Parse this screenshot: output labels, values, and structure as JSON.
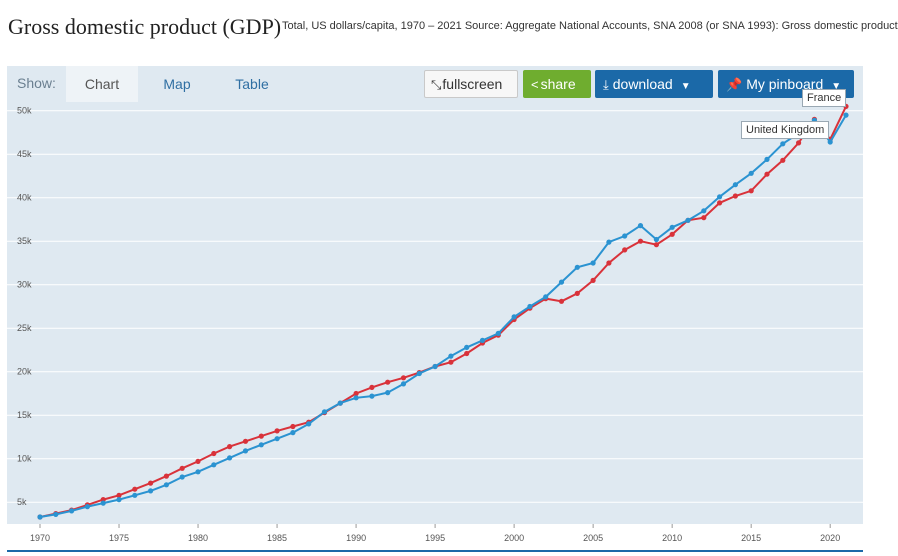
{
  "header": {
    "title": "Gross domestic product (GDP)",
    "subtitle": "Total, US dollars/capita, 1970 – 2021 Source: Aggregate National Accounts, SNA 2008 (or SNA 1993): Gross domestic product"
  },
  "toolbar": {
    "show_label": "Show:",
    "tabs": [
      {
        "label": "Chart",
        "active": true
      },
      {
        "label": "Map",
        "active": false
      },
      {
        "label": "Table",
        "active": false
      }
    ],
    "fullscreen_label": "fullscreen",
    "share_label": "share",
    "download_label": "download",
    "pinboard_label": "My pinboard"
  },
  "tooltips": {
    "france": "France",
    "uk": "United Kingdom"
  },
  "colors": {
    "france": "#d9323a",
    "uk": "#2b93d1",
    "plot_bg": "#dfe9f1",
    "grid": "#ffffff",
    "accent": "#1b69a8",
    "share": "#6fad2f"
  },
  "chart_data": {
    "type": "line",
    "title": "Gross domestic product (GDP)",
    "xlabel": "",
    "ylabel": "",
    "x": [
      1970,
      1971,
      1972,
      1973,
      1974,
      1975,
      1976,
      1977,
      1978,
      1979,
      1980,
      1981,
      1982,
      1983,
      1984,
      1985,
      1986,
      1987,
      1988,
      1989,
      1990,
      1991,
      1992,
      1993,
      1994,
      1995,
      1996,
      1997,
      1998,
      1999,
      2000,
      2001,
      2002,
      2003,
      2004,
      2005,
      2006,
      2007,
      2008,
      2009,
      2010,
      2011,
      2012,
      2013,
      2014,
      2015,
      2016,
      2017,
      2018,
      2019,
      2020,
      2021
    ],
    "xlim": [
      1970,
      2021
    ],
    "ylim": [
      2500,
      51000
    ],
    "y_ticks": [
      5000,
      10000,
      15000,
      20000,
      25000,
      30000,
      35000,
      40000,
      45000,
      50000
    ],
    "y_tick_labels": [
      "5k",
      "10k",
      "15k",
      "20k",
      "25k",
      "30k",
      "35k",
      "40k",
      "45k",
      "50k"
    ],
    "x_ticks": [
      1970,
      1975,
      1980,
      1985,
      1990,
      1995,
      2000,
      2005,
      2010,
      2015,
      2020
    ],
    "x_tick_labels": [
      "1970",
      "1975",
      "1980",
      "1985",
      "1990",
      "1995",
      "2000",
      "2005",
      "2010",
      "2015",
      "2020"
    ],
    "grid": true,
    "series": [
      {
        "name": "France",
        "color": "#d9323a",
        "values": [
          3300,
          3700,
          4100,
          4700,
          5300,
          5800,
          6500,
          7200,
          8000,
          8900,
          9700,
          10600,
          11400,
          12000,
          12600,
          13200,
          13700,
          14200,
          15300,
          16400,
          17500,
          18200,
          18800,
          19300,
          19900,
          20600,
          21100,
          22100,
          23300,
          24200,
          26000,
          27300,
          28400,
          28100,
          29000,
          30500,
          32500,
          34000,
          35000,
          34600,
          35800,
          37400,
          37700,
          39400,
          40200,
          40800,
          42700,
          44300,
          46300,
          49000,
          46700,
          50500
        ]
      },
      {
        "name": "United Kingdom",
        "color": "#2b93d1",
        "values": [
          3300,
          3600,
          4000,
          4500,
          4900,
          5300,
          5800,
          6300,
          7000,
          7900,
          8500,
          9300,
          10100,
          10900,
          11600,
          12300,
          13000,
          14000,
          15400,
          16400,
          17000,
          17200,
          17600,
          18600,
          19800,
          20600,
          21800,
          22800,
          23600,
          24400,
          26300,
          27500,
          28600,
          30300,
          32000,
          32500,
          34900,
          35600,
          36800,
          35200,
          36600,
          37400,
          38500,
          40100,
          41500,
          42800,
          44400,
          46200,
          47400,
          48900,
          46400,
          49500
        ]
      }
    ]
  }
}
